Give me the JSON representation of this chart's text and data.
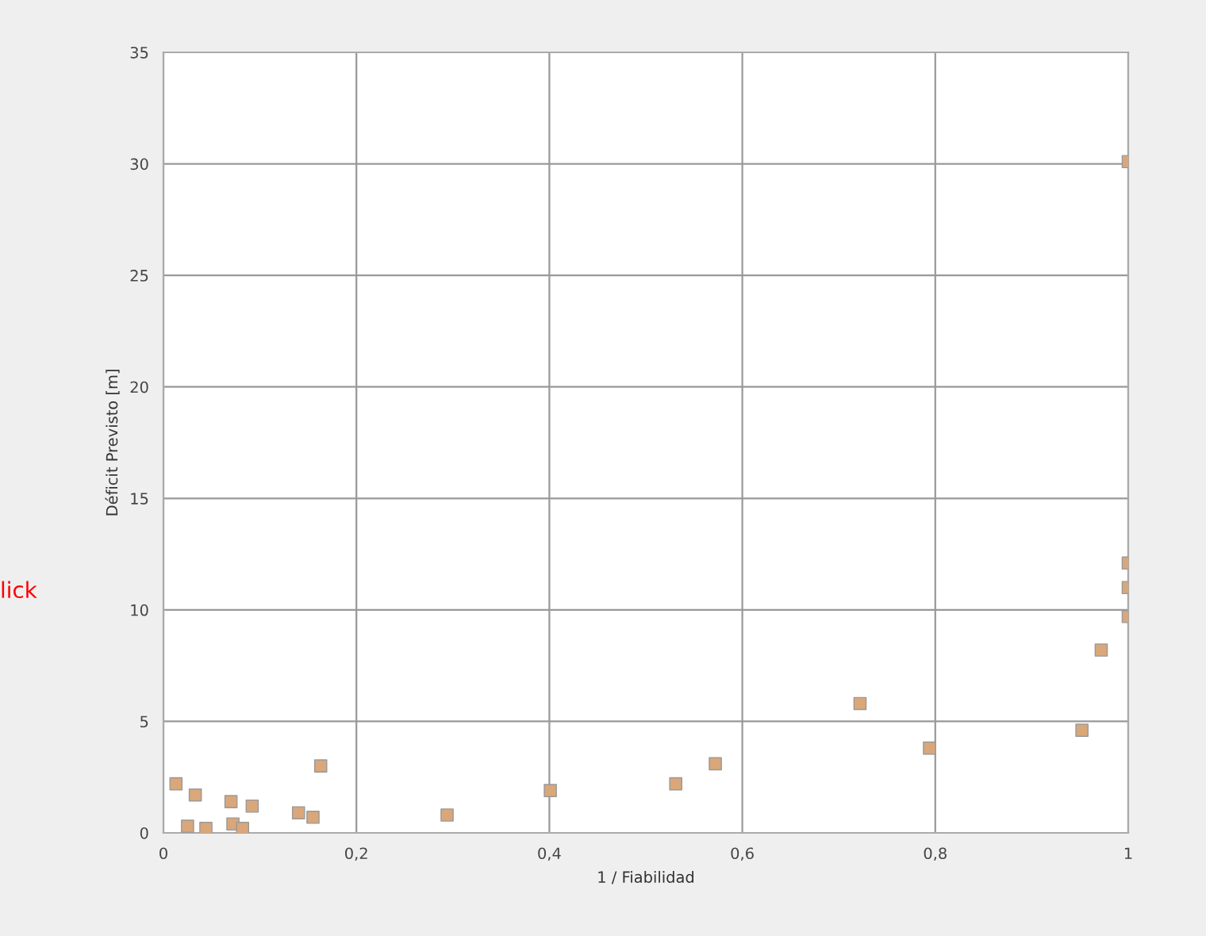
{
  "chart_data": {
    "type": "scatter",
    "xlabel": "1 / Fiabilidad",
    "ylabel": "Déficit Previsto [m]",
    "annotations": [
      "lick"
    ],
    "x": [
      0.013,
      0.033,
      0.025,
      0.044,
      0.07,
      0.092,
      0.072,
      0.082,
      0.14,
      0.155,
      0.163,
      0.294,
      0.401,
      0.531,
      0.572,
      0.722,
      0.794,
      0.952,
      0.972,
      1.0,
      1.0,
      1.0,
      1.0
    ],
    "series": [
      {
        "color": "#d9a77a",
        "values": [
          2.2,
          1.7,
          0.3,
          0.2,
          1.4,
          1.2,
          0.4,
          0.2,
          0.9,
          0.7,
          3.0,
          0.8,
          1.9,
          2.2,
          3.1,
          5.8,
          3.8,
          4.6,
          8.2,
          30.1,
          12.1,
          11.0,
          9.7
        ]
      }
    ],
    "xlim": [
      0,
      1
    ],
    "xticks": [
      0,
      {
        "value": 0.2,
        "label": "0,2"
      },
      {
        "value": 0.4,
        "label": "0,4"
      },
      {
        "value": 0.6,
        "label": "0,6"
      },
      {
        "value": 0.8,
        "label": "0,8"
      },
      1
    ],
    "ylim": [
      0,
      35
    ],
    "yticks": [
      0,
      5,
      10,
      15,
      20,
      25,
      30,
      35
    ],
    "grid": true,
    "marker": "square"
  }
}
